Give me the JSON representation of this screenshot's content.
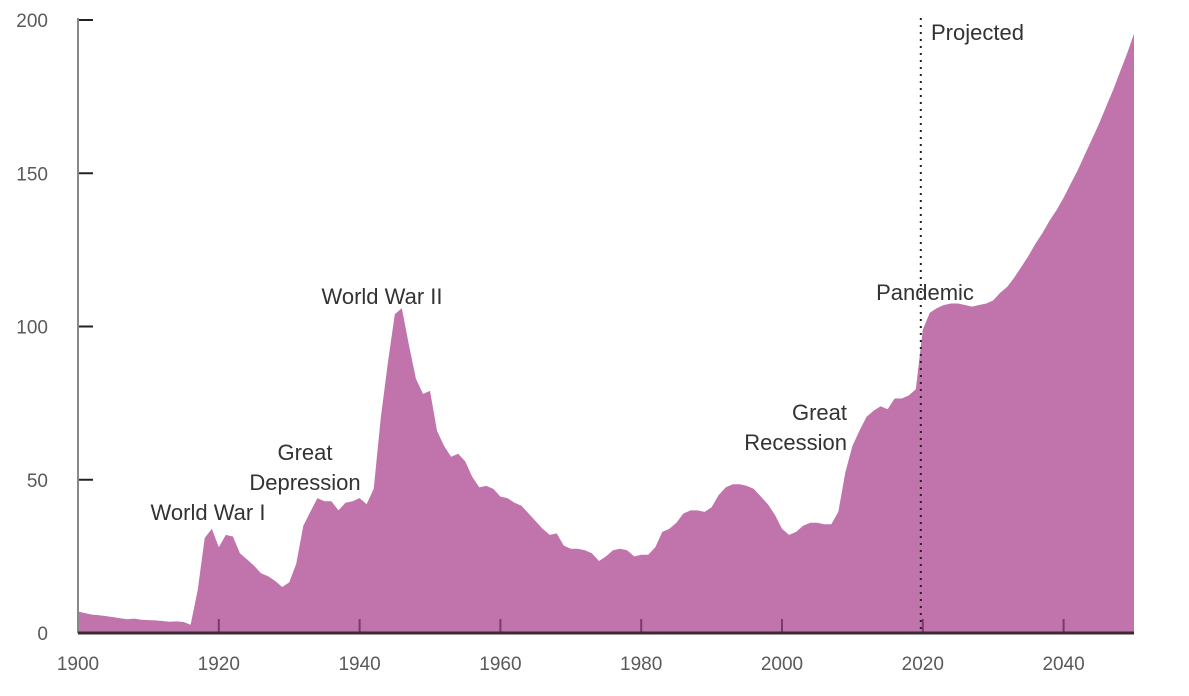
{
  "chart_data": {
    "type": "area",
    "title": "",
    "xlabel": "",
    "ylabel": "",
    "xlim": [
      1900,
      2050
    ],
    "ylim": [
      0,
      200
    ],
    "grid": false,
    "fill_color": "#c074ab",
    "x_ticks": [
      1900,
      1920,
      1940,
      1960,
      1980,
      2000,
      2020,
      2040
    ],
    "y_ticks": [
      0,
      50,
      100,
      150,
      200
    ],
    "projection_start": 2020,
    "annotations": [
      {
        "text": "World War I",
        "year": 1919
      },
      {
        "text": "Great Depression",
        "lines": [
          "Great",
          "Depression"
        ],
        "year": 1933
      },
      {
        "text": "World War II",
        "year": 1946
      },
      {
        "text": "Great Recession",
        "lines": [
          "Great",
          "Recession"
        ],
        "year": 2009
      },
      {
        "text": "Pandemic",
        "year": 2020
      },
      {
        "text": "Projected",
        "year": 2020
      }
    ],
    "x": [
      1900,
      1901,
      1902,
      1903,
      1904,
      1905,
      1906,
      1907,
      1908,
      1909,
      1910,
      1911,
      1912,
      1913,
      1914,
      1915,
      1916,
      1917,
      1918,
      1919,
      1920,
      1921,
      1922,
      1923,
      1924,
      1925,
      1926,
      1927,
      1928,
      1929,
      1930,
      1931,
      1932,
      1933,
      1934,
      1935,
      1936,
      1937,
      1938,
      1939,
      1940,
      1941,
      1942,
      1943,
      1944,
      1945,
      1946,
      1947,
      1948,
      1949,
      1950,
      1951,
      1952,
      1953,
      1954,
      1955,
      1956,
      1957,
      1958,
      1959,
      1960,
      1961,
      1962,
      1963,
      1964,
      1965,
      1966,
      1967,
      1968,
      1969,
      1970,
      1971,
      1972,
      1973,
      1974,
      1975,
      1976,
      1977,
      1978,
      1979,
      1980,
      1981,
      1982,
      1983,
      1984,
      1985,
      1986,
      1987,
      1988,
      1989,
      1990,
      1991,
      1992,
      1993,
      1994,
      1995,
      1996,
      1997,
      1998,
      1999,
      2000,
      2001,
      2002,
      2003,
      2004,
      2005,
      2006,
      2007,
      2008,
      2009,
      2010,
      2011,
      2012,
      2013,
      2014,
      2015,
      2016,
      2017,
      2018,
      2019,
      2020,
      2021,
      2022,
      2023,
      2024,
      2025,
      2026,
      2027,
      2028,
      2029,
      2030,
      2031,
      2032,
      2033,
      2034,
      2035,
      2036,
      2037,
      2038,
      2039,
      2040,
      2041,
      2042,
      2043,
      2044,
      2045,
      2046,
      2047,
      2048,
      2049,
      2050
    ],
    "values": [
      7,
      6.5,
      6,
      5.8,
      5.5,
      5.2,
      4.8,
      4.5,
      4.7,
      4.3,
      4.2,
      4.1,
      3.9,
      3.7,
      3.8,
      3.6,
      2.7,
      14,
      31,
      34,
      28,
      32,
      31.5,
      26,
      24,
      22,
      19.5,
      18.5,
      17,
      15,
      16.5,
      22.5,
      35,
      39.5,
      44,
      43,
      43,
      40,
      42.5,
      43,
      44,
      42,
      47,
      70,
      88,
      104,
      106,
      94,
      83,
      78,
      79,
      66,
      61,
      57.5,
      58.5,
      56,
      51,
      47.5,
      48,
      47,
      44.5,
      44,
      42.5,
      41.5,
      39,
      36.5,
      34,
      32,
      32.5,
      28.5,
      27.5,
      27.5,
      27,
      26,
      23.5,
      25,
      27,
      27.5,
      27,
      25,
      25.5,
      25.5,
      28,
      33,
      34,
      36,
      39,
      40,
      40,
      39.5,
      41,
      45,
      47.5,
      48.5,
      48.5,
      48,
      47,
      44.5,
      42,
      38.5,
      34,
      32,
      33,
      35,
      36,
      36,
      35.5,
      35.5,
      39.5,
      52.5,
      61,
      66,
      70.5,
      72.5,
      74,
      73,
      76.5,
      76.5,
      77.5,
      79.5,
      99,
      104.5,
      106,
      107,
      107.5,
      107.5,
      107,
      106.5,
      107,
      107.5,
      108.5,
      111,
      113,
      116,
      119.5,
      123,
      127,
      130.5,
      134.5,
      138,
      142,
      146.5,
      151,
      156,
      161,
      166,
      171.5,
      177,
      183,
      189,
      195.5
    ]
  }
}
